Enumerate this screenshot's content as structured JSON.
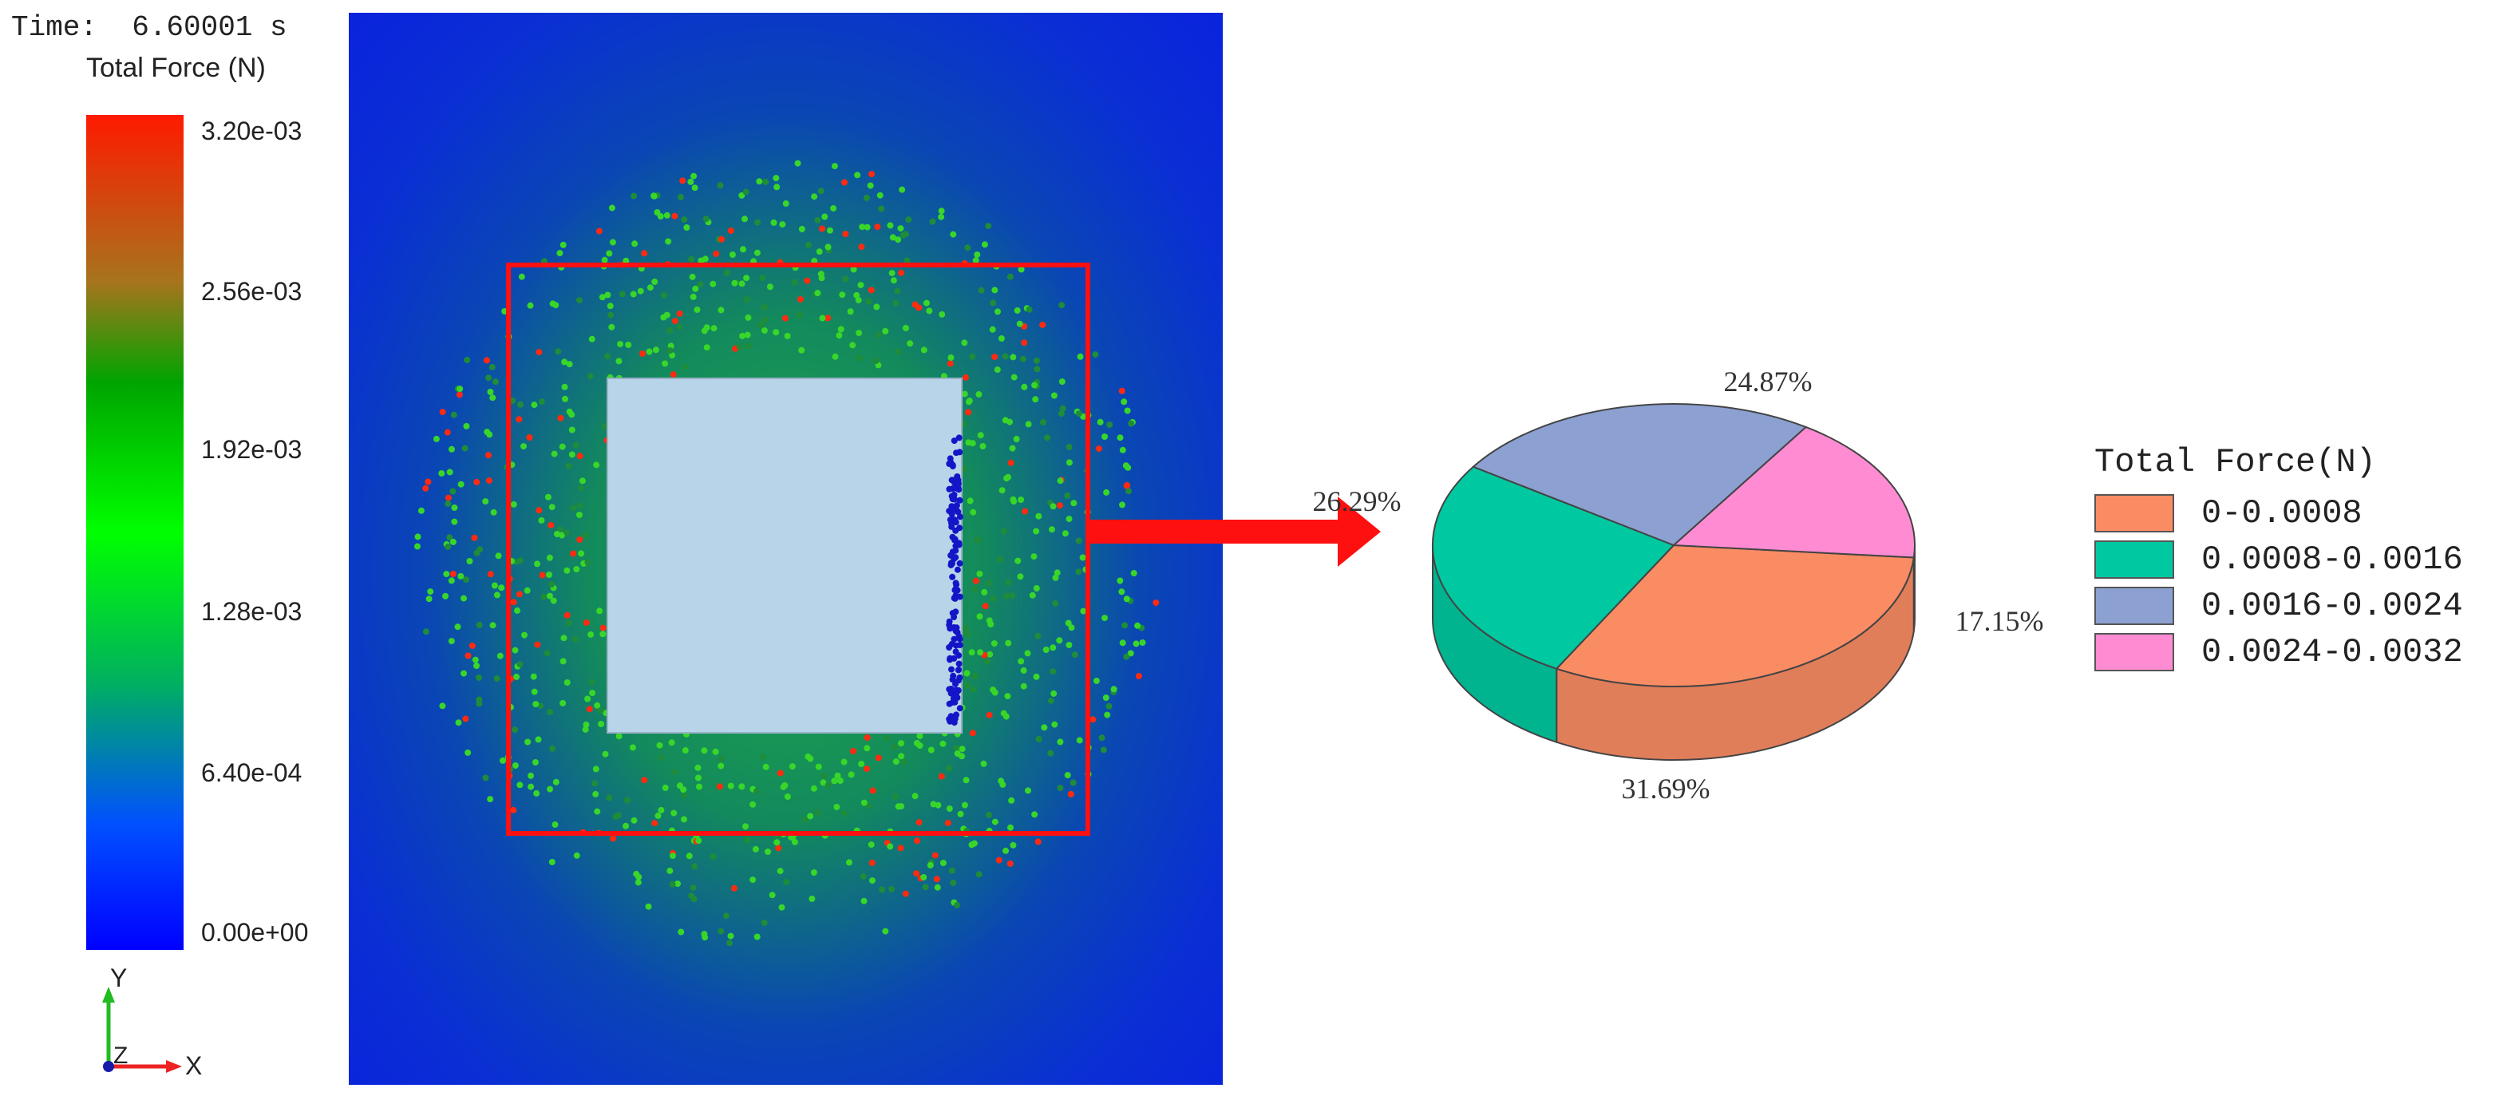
{
  "time_label": "Time:  6.60001 s",
  "colorbar": {
    "title": "Total Force (N)",
    "ticks": [
      "3.20e-03",
      "2.56e-03",
      "1.92e-03",
      "1.28e-03",
      "6.40e-04",
      "0.00e+00"
    ]
  },
  "axes": {
    "y_label": "Y",
    "z_label": "Z",
    "x_label": "X"
  },
  "colors": {
    "highlight_box": "#ff1010",
    "arrow": "#ff1010",
    "block": "#b8d4e8"
  },
  "chart_data": {
    "type": "pie",
    "title": "",
    "legend_title": "Total Force(N)",
    "legend_placement": "right",
    "categories": [
      "0-0.0008",
      "0.0008-0.0016",
      "0.0016-0.0024",
      "0.0024-0.0032"
    ],
    "values": [
      31.69,
      26.29,
      24.87,
      17.15
    ],
    "labels": [
      "31.69%",
      "26.29%",
      "24.87%",
      "17.15%"
    ],
    "colors": [
      "#fa8c64",
      "#00c8a0",
      "#8ca0d2",
      "#ff8cd2"
    ]
  }
}
